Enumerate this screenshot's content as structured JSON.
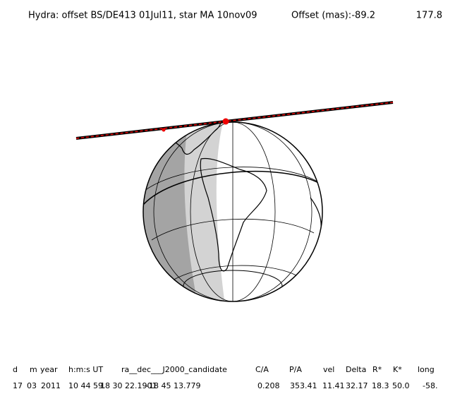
{
  "header": {
    "title": "Hydra: offset BS/DE413 01Jul11, star MA 10nov09",
    "offset_label": "Offset (mas):",
    "offset_values": [
      "-89.2",
      "177.8"
    ]
  },
  "table": {
    "headers": [
      "d",
      "m",
      "year",
      "h:m:s UT",
      "ra__dec___J2000_candidate",
      "C/A",
      "P/A",
      "vel",
      "Delta",
      "R*",
      "K*",
      "long"
    ],
    "row": [
      "17",
      "03",
      "2011",
      "10 44 59.",
      "18 30 22.1901",
      "-18 45 13.779",
      "0.208",
      "353.41",
      "11.41",
      "32.17",
      "18.3",
      "50.0",
      "-58."
    ]
  }
}
